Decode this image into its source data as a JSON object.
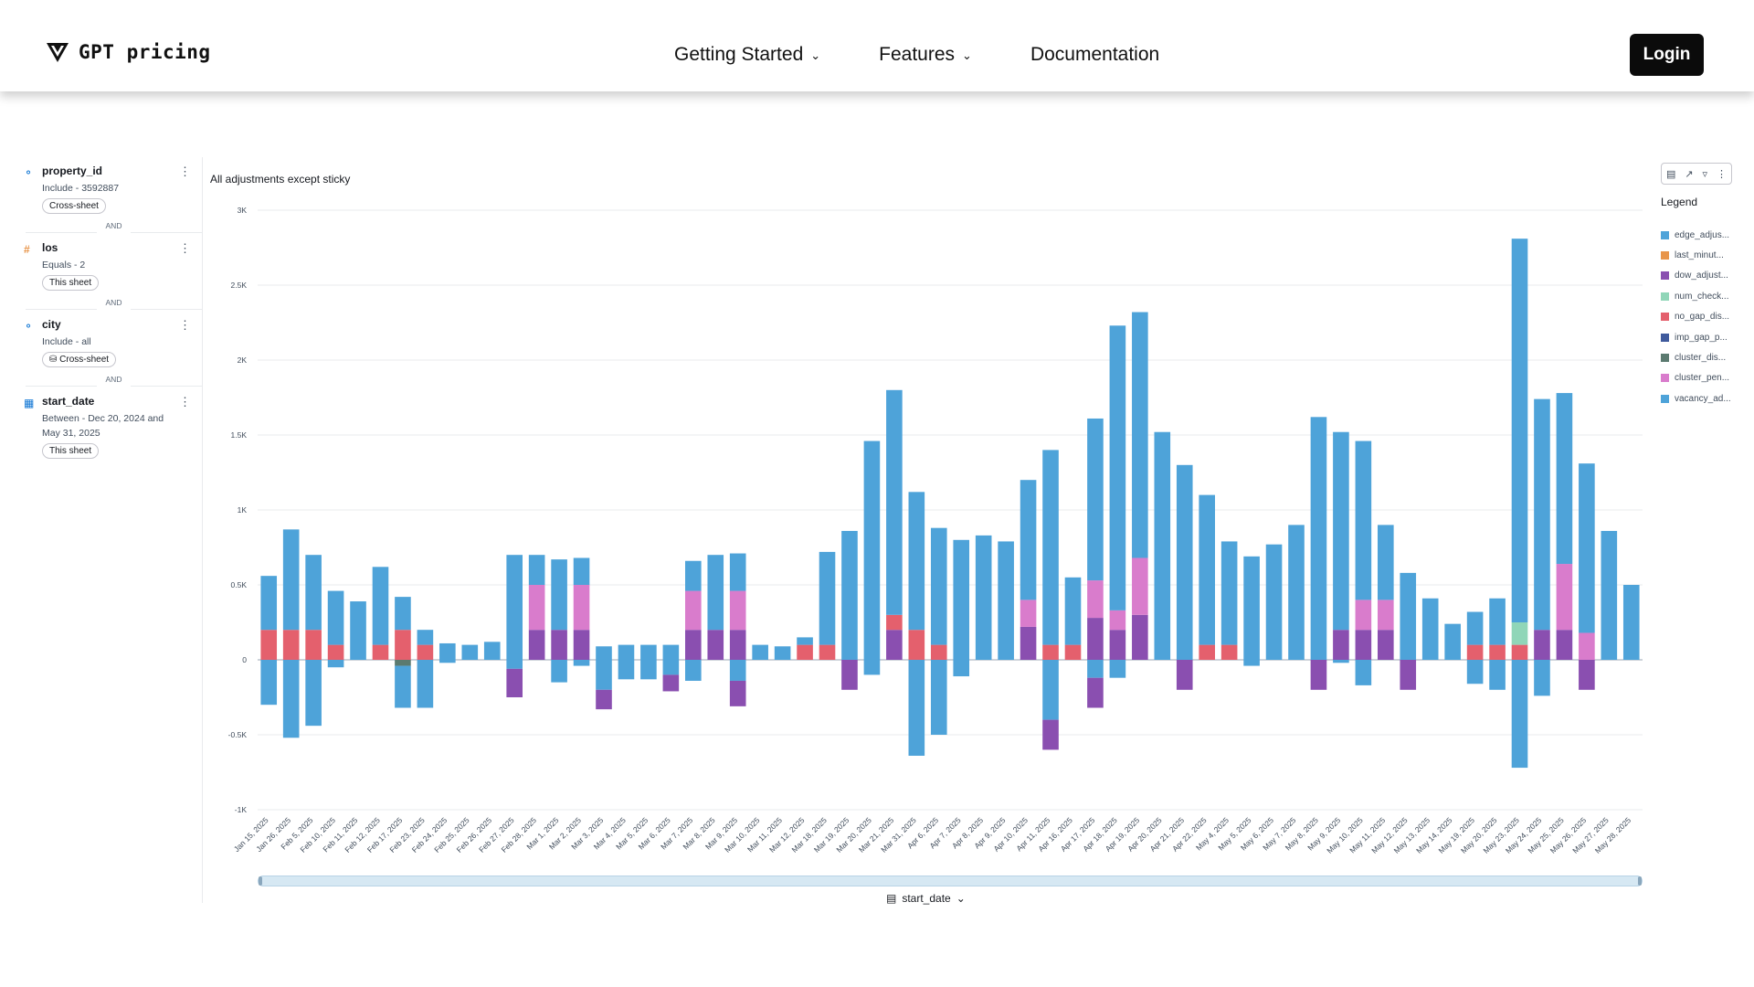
{
  "brand": {
    "name": "GPT pricing"
  },
  "nav": {
    "items": [
      {
        "label": "Getting Started",
        "has_dropdown": true
      },
      {
        "label": "Features",
        "has_dropdown": true
      },
      {
        "label": "Documentation",
        "has_dropdown": false
      }
    ],
    "login_label": "Login"
  },
  "filters": {
    "and_label": "AND",
    "items": [
      {
        "name": "property_id",
        "desc": "Include - 3592887",
        "chip": "Cross-sheet",
        "icon": "tag-icon"
      },
      {
        "name": "los",
        "desc": "Equals - 2",
        "chip": "This sheet",
        "icon": "hash-icon"
      },
      {
        "name": "city",
        "desc": "Include - all",
        "chip": "Cross-sheet",
        "icon": "tag-icon"
      },
      {
        "name": "start_date",
        "desc": "Between - Dec 20, 2024 and May 31, 2025",
        "chip": "This sheet",
        "icon": "calendar-icon"
      }
    ]
  },
  "legend": {
    "title": "Legend",
    "items": [
      {
        "label": "edge_adjus...",
        "color": "#4ea3d9"
      },
      {
        "label": "last_minut...",
        "color": "#e8954a"
      },
      {
        "label": "dow_adjust...",
        "color": "#8a4fb0"
      },
      {
        "label": "num_check...",
        "color": "#90d6b8"
      },
      {
        "label": "no_gap_dis...",
        "color": "#e4606d"
      },
      {
        "label": "imp_gap_p...",
        "color": "#3f5a9c"
      },
      {
        "label": "cluster_dis...",
        "color": "#5b7a70"
      },
      {
        "label": "cluster_pen...",
        "color": "#d97ccc"
      },
      {
        "label": "vacancy_ad...",
        "color": "#4ea3d9"
      }
    ]
  },
  "x_field_label": "start_date",
  "chart_data": {
    "type": "bar",
    "stacked": true,
    "title": "All adjustments except sticky",
    "xlabel": "start_date",
    "ylabel": "",
    "ylim": [
      -1000,
      3000
    ],
    "yticks": [
      -1000,
      -500,
      0,
      500,
      1000,
      1500,
      2000,
      2500,
      3000
    ],
    "ytick_labels": [
      "-1K",
      "-0.5K",
      "0",
      "0.5K",
      "1K",
      "1.5K",
      "2K",
      "2.5K",
      "3K"
    ],
    "categories": [
      "Jan 15, 2025",
      "Jan 26, 2025",
      "Feb 5, 2025",
      "Feb 10, 2025",
      "Feb 11, 2025",
      "Feb 12, 2025",
      "Feb 17, 2025",
      "Feb 23, 2025",
      "Feb 24, 2025",
      "Feb 25, 2025",
      "Feb 26, 2025",
      "Feb 27, 2025",
      "Feb 28, 2025",
      "Mar 1, 2025",
      "Mar 2, 2025",
      "Mar 3, 2025",
      "Mar 4, 2025",
      "Mar 5, 2025",
      "Mar 6, 2025",
      "Mar 7, 2025",
      "Mar 8, 2025",
      "Mar 9, 2025",
      "Mar 10, 2025",
      "Mar 11, 2025",
      "Mar 12, 2025",
      "Mar 18, 2025",
      "Mar 19, 2025",
      "Mar 20, 2025",
      "Mar 21, 2025",
      "Mar 31, 2025",
      "Apr 6, 2025",
      "Apr 7, 2025",
      "Apr 8, 2025",
      "Apr 9, 2025",
      "Apr 10, 2025",
      "Apr 11, 2025",
      "Apr 16, 2025",
      "Apr 17, 2025",
      "Apr 18, 2025",
      "Apr 19, 2025",
      "Apr 20, 2025",
      "Apr 21, 2025",
      "Apr 22, 2025",
      "May 4, 2025",
      "May 5, 2025",
      "May 6, 2025",
      "May 7, 2025",
      "May 8, 2025",
      "May 9, 2025",
      "May 10, 2025",
      "May 11, 2025",
      "May 12, 2025",
      "May 13, 2025",
      "May 14, 2025",
      "May 19, 2025",
      "May 20, 2025",
      "May 23, 2025",
      "May 24, 2025",
      "May 25, 2025",
      "May 26, 2025",
      "May 27, 2025",
      "May 28, 2025"
    ],
    "series": [
      {
        "name": "dow_adjustment",
        "color": "#8a4fb0",
        "values": [
          0,
          0,
          0,
          0,
          0,
          0,
          0,
          0,
          0,
          0,
          0,
          0,
          200,
          200,
          200,
          0,
          0,
          0,
          0,
          200,
          200,
          200,
          0,
          0,
          0,
          0,
          0,
          0,
          200,
          0,
          0,
          0,
          0,
          0,
          220,
          0,
          0,
          280,
          200,
          300,
          0,
          0,
          0,
          0,
          0,
          0,
          0,
          0,
          200,
          200,
          200,
          0,
          0,
          0,
          0,
          0,
          0,
          200,
          200,
          0,
          0,
          0
        ]
      },
      {
        "name": "no_gap_discount",
        "color": "#e4606d",
        "values": [
          200,
          200,
          200,
          100,
          0,
          100,
          200,
          100,
          0,
          0,
          0,
          0,
          0,
          0,
          0,
          0,
          0,
          0,
          0,
          0,
          0,
          0,
          0,
          0,
          100,
          100,
          0,
          0,
          100,
          200,
          100,
          0,
          0,
          0,
          0,
          100,
          100,
          0,
          0,
          0,
          0,
          0,
          100,
          100,
          0,
          0,
          0,
          0,
          0,
          0,
          0,
          0,
          0,
          0,
          100,
          100,
          100,
          0,
          0,
          0,
          0,
          0
        ]
      },
      {
        "name": "num_checkins",
        "color": "#90d6b8",
        "values": [
          0,
          0,
          0,
          0,
          0,
          0,
          0,
          0,
          0,
          0,
          0,
          0,
          0,
          0,
          0,
          0,
          0,
          0,
          0,
          0,
          0,
          0,
          0,
          0,
          0,
          0,
          0,
          0,
          0,
          0,
          0,
          0,
          0,
          0,
          0,
          0,
          0,
          0,
          0,
          0,
          0,
          0,
          0,
          0,
          0,
          0,
          0,
          0,
          0,
          0,
          0,
          0,
          0,
          0,
          0,
          0,
          150,
          0,
          0,
          0,
          0,
          0
        ]
      },
      {
        "name": "cluster_penalty",
        "color": "#d97ccc",
        "values": [
          0,
          0,
          0,
          0,
          0,
          0,
          0,
          0,
          0,
          0,
          0,
          0,
          300,
          0,
          300,
          0,
          0,
          0,
          0,
          260,
          0,
          260,
          0,
          0,
          0,
          0,
          0,
          0,
          0,
          0,
          0,
          0,
          0,
          0,
          180,
          0,
          0,
          250,
          130,
          380,
          0,
          0,
          0,
          0,
          0,
          0,
          0,
          0,
          0,
          200,
          200,
          0,
          0,
          0,
          0,
          0,
          0,
          0,
          440,
          180,
          0,
          0
        ]
      },
      {
        "name": "edge_adjustment",
        "color": "#4ea3d9",
        "values": [
          360,
          670,
          500,
          360,
          390,
          520,
          220,
          100,
          110,
          100,
          120,
          700,
          200,
          470,
          180,
          90,
          100,
          100,
          100,
          200,
          500,
          250,
          100,
          90,
          50,
          620,
          860,
          1460,
          1500,
          920,
          780,
          800,
          830,
          790,
          800,
          1300,
          450,
          1080,
          1900,
          1640,
          1520,
          1300,
          1000,
          690,
          690,
          770,
          900,
          1620,
          1320,
          1060,
          500,
          580,
          410,
          240,
          220,
          310,
          2560,
          1540,
          1140,
          1130,
          860,
          500
        ]
      },
      {
        "name": "cluster_discount",
        "color": "#5b7a70",
        "values": [
          0,
          0,
          0,
          0,
          0,
          0,
          -40,
          0,
          0,
          0,
          0,
          0,
          0,
          0,
          0,
          0,
          0,
          0,
          0,
          0,
          0,
          0,
          0,
          0,
          0,
          0,
          0,
          0,
          0,
          0,
          0,
          0,
          0,
          0,
          0,
          0,
          0,
          0,
          0,
          0,
          0,
          0,
          0,
          0,
          0,
          0,
          0,
          0,
          0,
          0,
          0,
          0,
          0,
          0,
          0,
          0,
          0,
          0,
          0,
          0,
          0,
          0
        ]
      },
      {
        "name": "vacancy_adjustment_neg",
        "color": "#4ea3d9",
        "values": [
          -300,
          -520,
          -440,
          -50,
          0,
          0,
          -280,
          -320,
          -20,
          0,
          0,
          -60,
          0,
          -150,
          -40,
          -200,
          -130,
          -130,
          -100,
          -140,
          0,
          -140,
          0,
          0,
          0,
          0,
          0,
          -100,
          0,
          -640,
          -500,
          -110,
          0,
          0,
          0,
          -400,
          0,
          -120,
          -120,
          0,
          0,
          0,
          0,
          0,
          -40,
          0,
          0,
          0,
          -20,
          -170,
          0,
          0,
          0,
          0,
          -160,
          -200,
          -720,
          -240,
          0,
          0,
          0,
          0
        ]
      },
      {
        "name": "dow_adjustment_neg",
        "color": "#8a4fb0",
        "values": [
          0,
          0,
          0,
          0,
          0,
          0,
          0,
          0,
          0,
          0,
          0,
          -190,
          0,
          0,
          0,
          -130,
          0,
          0,
          -110,
          0,
          0,
          -170,
          0,
          0,
          0,
          0,
          -200,
          0,
          0,
          0,
          0,
          0,
          0,
          0,
          0,
          -200,
          0,
          -200,
          0,
          0,
          0,
          -200,
          0,
          0,
          0,
          0,
          0,
          -200,
          0,
          0,
          0,
          -200,
          0,
          0,
          0,
          0,
          0,
          0,
          0,
          -200,
          0,
          0
        ]
      }
    ]
  }
}
